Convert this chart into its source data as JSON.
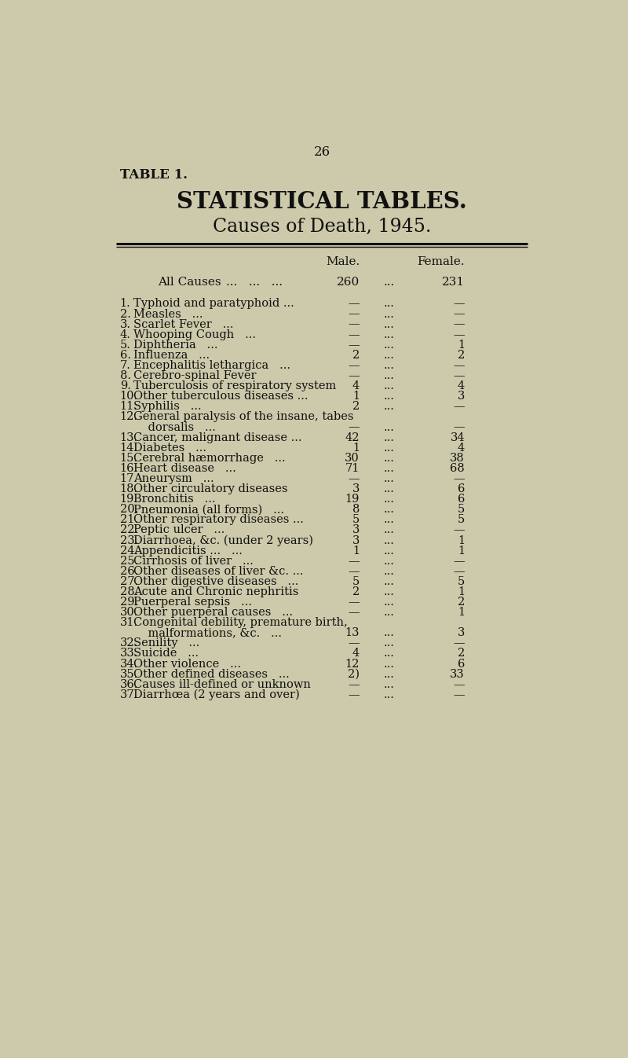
{
  "page_number": "26",
  "table_label": "TABLE 1.",
  "title1": "STATISTICAL TABLES.",
  "title2": "Causes of Death, 1945.",
  "col_male": "Male.",
  "col_female": "Female.",
  "all_causes_label": "All Causes",
  "all_causes_dots": "...   ...   ...",
  "all_causes_male": "260",
  "all_causes_female": "231",
  "rows": [
    {
      "num": "1.",
      "cause": "Typhoid and paratyphoid ...",
      "extra_dots": "...",
      "male": "—",
      "female": "—",
      "two_line": false
    },
    {
      "num": "2.",
      "cause": "Measles   ...",
      "extra_dots": "...   ...   ...",
      "male": "—",
      "female": "—",
      "two_line": false
    },
    {
      "num": "3.",
      "cause": "Scarlet Fever   ...",
      "extra_dots": "...   ...   ...",
      "male": "—",
      "female": "—",
      "two_line": false
    },
    {
      "num": "4.",
      "cause": "Whooping Cough   ...",
      "extra_dots": "...   ...   ...",
      "male": "—",
      "female": "—",
      "two_line": false
    },
    {
      "num": "5.",
      "cause": "Diphtheria   ...",
      "extra_dots": "...   ...   ...",
      "male": "—",
      "female": "1",
      "two_line": false
    },
    {
      "num": "6.",
      "cause": "Influenza   ...",
      "extra_dots": "...   ...   ...",
      "male": "2",
      "female": "2",
      "two_line": false
    },
    {
      "num": "7.",
      "cause": "Encephalitis lethargica   ...",
      "extra_dots": "...",
      "male": "—",
      "female": "—",
      "two_line": false
    },
    {
      "num": "8.",
      "cause": "Cerebro-spinal Fever",
      "extra_dots": "...   ...",
      "male": "—",
      "female": "—",
      "two_line": false
    },
    {
      "num": "9.",
      "cause": "Tuberculosis of respiratory system",
      "extra_dots": "",
      "male": "4",
      "female": "4",
      "two_line": false
    },
    {
      "num": "10.",
      "cause": "Other tuberculous diseases ...",
      "extra_dots": "..",
      "male": "1",
      "female": "3",
      "two_line": false
    },
    {
      "num": "11.",
      "cause": "Syphilis   ...",
      "extra_dots": "...   ...   ...",
      "male": "2",
      "female": "—",
      "two_line": false
    },
    {
      "num": "12.",
      "cause": "General paralysis of the insane, tabes",
      "cause2": "    dorsalis   ...",
      "extra_dots": "...   ...",
      "male": "—",
      "female": "—",
      "two_line": true
    },
    {
      "num": "13.",
      "cause": "Cancer, malignant disease ...",
      "extra_dots": "...",
      "male": "42",
      "female": "34",
      "two_line": false
    },
    {
      "num": "14.",
      "cause": "Diabetes   ...",
      "extra_dots": "...   ...   ...",
      "male": "1",
      "female": "4",
      "two_line": false
    },
    {
      "num": "15.",
      "cause": "Cerebral hæmorrhage   ...",
      "extra_dots": "...",
      "male": "30",
      "female": "38",
      "two_line": false
    },
    {
      "num": "16.",
      "cause": "Heart disease   ...",
      "extra_dots": "...   ...   ...",
      "male": "71",
      "female": "68",
      "two_line": false
    },
    {
      "num": "17.",
      "cause": "Aneurysm   ...",
      "extra_dots": "...   ...   ...",
      "male": "—",
      "female": "—",
      "two_line": false
    },
    {
      "num": "18.",
      "cause": "Other circulatory diseases",
      "extra_dots": "...",
      "male": "3",
      "female": "6",
      "two_line": false
    },
    {
      "num": "19.",
      "cause": "Bronchitis   ...",
      "extra_dots": "...   ...   ...",
      "male": "19",
      "female": "6",
      "two_line": false
    },
    {
      "num": "20.",
      "cause": "Pneumonia (all forms)   ...",
      "extra_dots": "...",
      "male": "8",
      "female": "5",
      "two_line": false
    },
    {
      "num": "21.",
      "cause": "Other respiratory diseases ...",
      "extra_dots": "...",
      "male": "5",
      "female": "5",
      "two_line": false
    },
    {
      "num": "22.",
      "cause": "Peptic ulcer   ...",
      "extra_dots": "...   ...",
      "male": "3",
      "female": "—",
      "two_line": false
    },
    {
      "num": "23.",
      "cause": "Diarrhoea, &c. (under 2 years)",
      "extra_dots": "...",
      "male": "3",
      "female": "1",
      "two_line": false
    },
    {
      "num": "24.",
      "cause": "Appendicitis ...   ...",
      "extra_dots": "...   ...",
      "male": "1",
      "female": "1",
      "two_line": false
    },
    {
      "num": "25.",
      "cause": "Cirrhosis of liver   ...",
      "extra_dots": "...   ...",
      "male": "—",
      "female": "—",
      "two_line": false
    },
    {
      "num": "26.",
      "cause": "Other diseases of liver &c. ...",
      "extra_dots": "...",
      "male": "—",
      "female": "—",
      "two_line": false
    },
    {
      "num": "27.",
      "cause": "Other digestive diseases   ...",
      "extra_dots": "...",
      "male": "5",
      "female": "5",
      "two_line": false
    },
    {
      "num": "28.",
      "cause": "Acute and Chronic nephritis",
      "extra_dots": "...",
      "male": "2",
      "female": "1",
      "two_line": false
    },
    {
      "num": "29.",
      "cause": "Puerperal sepsis   ...",
      "extra_dots": "...   ...",
      "male": "—",
      "female": "2",
      "two_line": false
    },
    {
      "num": "30.",
      "cause": "Other puerperal causes   ...",
      "extra_dots": "...",
      "male": "—",
      "female": "1",
      "two_line": false
    },
    {
      "num": "31.",
      "cause": "Congenital debility, premature birth,",
      "cause2": "    malformations, &c.   ...",
      "extra_dots": "...",
      "male": "13",
      "female": "3",
      "two_line": true
    },
    {
      "num": "32.",
      "cause": "Senility   ...",
      "extra_dots": "...   ...   ...",
      "male": "—",
      "female": "—",
      "two_line": false
    },
    {
      "num": "33.",
      "cause": "Suicide   ...",
      "extra_dots": "...   ...   ...",
      "male": "4",
      "female": "2",
      "two_line": false
    },
    {
      "num": "34.",
      "cause": "Other violence   ...",
      "extra_dots": "...   ...",
      "male": "12",
      "female": "6",
      "two_line": false
    },
    {
      "num": "35.",
      "cause": "Other defined diseases   ...",
      "extra_dots": "...",
      "male": "2)",
      "female": "33",
      "two_line": false
    },
    {
      "num": "36.",
      "cause": "Causes ill-defined or unknown",
      "extra_dots": "...",
      "male": "—",
      "female": "—",
      "two_line": false
    },
    {
      "num": "37.",
      "cause": "Diarrhœa (2 years and over)",
      "extra_dots": "...",
      "male": "—",
      "female": "—",
      "two_line": false
    }
  ],
  "background_color": "#cccaaa",
  "text_color": "#111111",
  "line_color": "#111111"
}
